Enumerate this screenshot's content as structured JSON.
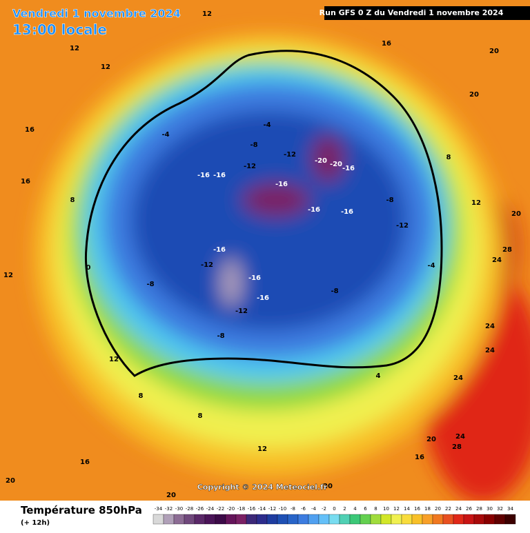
{
  "header": {
    "title": "Vendredi 1 novembre 2024",
    "subtitle": "13:00 locale",
    "run": "Run GFS 0 Z du Vendredi 1 novembre 2024"
  },
  "copyright": "Copyright © 2024 Meteociel.fr",
  "legend": {
    "title": "Température 850hPa",
    "step": "(+ 12h)",
    "values": [
      -34,
      -32,
      -30,
      -28,
      -26,
      -24,
      -22,
      -20,
      -18,
      -16,
      -14,
      -12,
      -10,
      -8,
      -6,
      -4,
      -2,
      0,
      2,
      4,
      6,
      8,
      10,
      12,
      14,
      16,
      18,
      20,
      22,
      24,
      26,
      28,
      30,
      32,
      34
    ],
    "colors": [
      "#d9d9d9",
      "#b0a0b8",
      "#8c6c94",
      "#70487c",
      "#5a2868",
      "#4a1458",
      "#3c0a48",
      "#64145a",
      "#7a2064",
      "#3c2878",
      "#2c2c8c",
      "#1e3ca0",
      "#1e50b4",
      "#2864c8",
      "#3c7ce0",
      "#50a0f0",
      "#64c0f8",
      "#78dcf0",
      "#50d0b4",
      "#3cc878",
      "#64d050",
      "#a0dc3c",
      "#d2e628",
      "#f0f050",
      "#f8dc3c",
      "#f8c028",
      "#f8a028",
      "#f07820",
      "#e85020",
      "#e02818",
      "#c81414",
      "#a80a0a",
      "#880000",
      "#600000",
      "#3c0000"
    ]
  },
  "contour_labels": [
    12,
    12,
    12,
    16,
    16,
    8,
    -4,
    -16,
    -16,
    -12,
    -16,
    -12,
    -20,
    -20,
    -16,
    -16,
    -16,
    -12,
    -8,
    -4,
    -8,
    -16,
    -12,
    -16,
    -16,
    -12,
    -8,
    -8,
    0,
    12,
    12,
    8,
    8,
    12,
    4,
    12,
    28,
    24,
    24,
    24,
    24,
    24,
    28,
    20,
    20,
    20,
    20,
    16,
    20,
    20,
    20,
    16,
    -8,
    -4,
    8,
    16
  ]
}
